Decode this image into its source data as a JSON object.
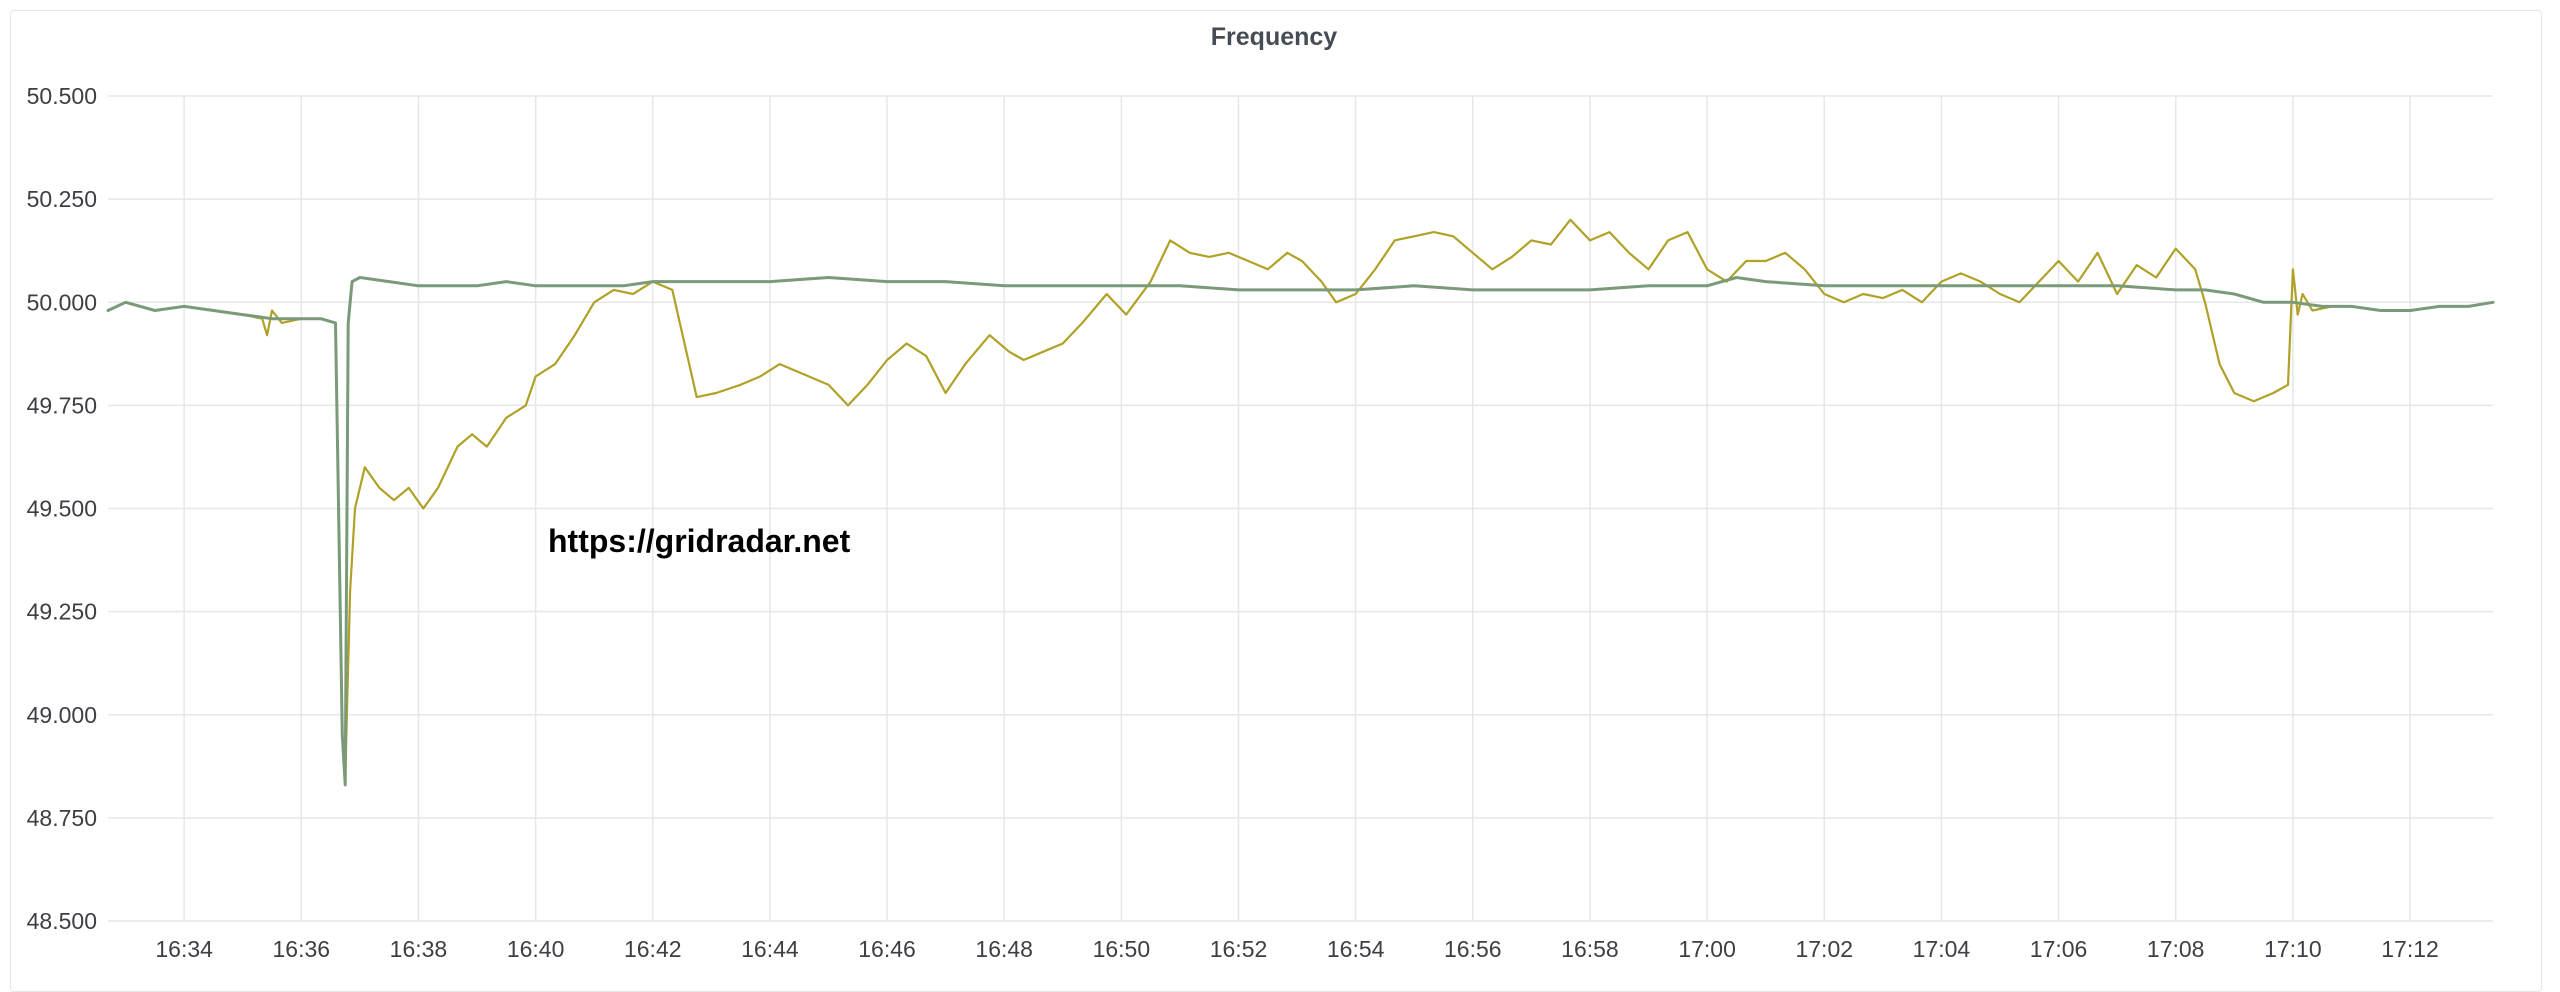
{
  "chart_data": {
    "type": "line",
    "title": "Frequency",
    "xlabel": "",
    "ylabel": "",
    "ylim": [
      48.5,
      50.5
    ],
    "yticks": [
      "50.500",
      "50.250",
      "50.000",
      "49.750",
      "49.500",
      "49.250",
      "49.000",
      "48.750",
      "48.500"
    ],
    "xticks": [
      "16:34",
      "16:36",
      "16:38",
      "16:40",
      "16:42",
      "16:44",
      "16:46",
      "16:48",
      "16:50",
      "16:52",
      "16:54",
      "16:56",
      "16:58",
      "17:00",
      "17:02",
      "17:04",
      "17:06",
      "17:08",
      "17:10",
      "17:12"
    ],
    "xrange": [
      "16:32:42",
      "17:13:25"
    ],
    "grid": true,
    "legend": "none",
    "watermark": "https://gridradar.net",
    "series": [
      {
        "color": "#b0a127",
        "points": [
          [
            "16:32:42",
            49.98
          ],
          [
            "16:33:00",
            50.0
          ],
          [
            "16:33:30",
            49.98
          ],
          [
            "16:34:00",
            49.99
          ],
          [
            "16:34:30",
            49.98
          ],
          [
            "16:35:00",
            49.97
          ],
          [
            "16:35:20",
            49.96
          ],
          [
            "16:35:25",
            49.92
          ],
          [
            "16:35:30",
            49.98
          ],
          [
            "16:35:40",
            49.95
          ],
          [
            "16:36:00",
            49.96
          ],
          [
            "16:36:20",
            49.96
          ],
          [
            "16:36:35",
            49.95
          ],
          [
            "16:36:42",
            48.95
          ],
          [
            "16:36:45",
            48.84
          ],
          [
            "16:36:50",
            49.3
          ],
          [
            "16:36:55",
            49.5
          ],
          [
            "16:37:05",
            49.6
          ],
          [
            "16:37:20",
            49.55
          ],
          [
            "16:37:35",
            49.52
          ],
          [
            "16:37:50",
            49.55
          ],
          [
            "16:38:05",
            49.5
          ],
          [
            "16:38:20",
            49.55
          ],
          [
            "16:38:40",
            49.65
          ],
          [
            "16:38:55",
            49.68
          ],
          [
            "16:39:10",
            49.65
          ],
          [
            "16:39:30",
            49.72
          ],
          [
            "16:39:50",
            49.75
          ],
          [
            "16:40:00",
            49.82
          ],
          [
            "16:40:20",
            49.85
          ],
          [
            "16:40:40",
            49.92
          ],
          [
            "16:41:00",
            50.0
          ],
          [
            "16:41:20",
            50.03
          ],
          [
            "16:41:40",
            50.02
          ],
          [
            "16:42:00",
            50.05
          ],
          [
            "16:42:20",
            50.03
          ],
          [
            "16:42:45",
            49.77
          ],
          [
            "16:43:05",
            49.78
          ],
          [
            "16:43:30",
            49.8
          ],
          [
            "16:43:50",
            49.82
          ],
          [
            "16:44:10",
            49.85
          ],
          [
            "16:44:40",
            49.82
          ],
          [
            "16:45:00",
            49.8
          ],
          [
            "16:45:20",
            49.75
          ],
          [
            "16:45:40",
            49.8
          ],
          [
            "16:46:00",
            49.86
          ],
          [
            "16:46:20",
            49.9
          ],
          [
            "16:46:40",
            49.87
          ],
          [
            "16:47:00",
            49.78
          ],
          [
            "16:47:20",
            49.85
          ],
          [
            "16:47:45",
            49.92
          ],
          [
            "16:48:05",
            49.88
          ],
          [
            "16:48:20",
            49.86
          ],
          [
            "16:48:40",
            49.88
          ],
          [
            "16:49:00",
            49.9
          ],
          [
            "16:49:20",
            49.95
          ],
          [
            "16:49:45",
            50.02
          ],
          [
            "16:50:05",
            49.97
          ],
          [
            "16:50:30",
            50.05
          ],
          [
            "16:50:50",
            50.15
          ],
          [
            "16:51:10",
            50.12
          ],
          [
            "16:51:30",
            50.11
          ],
          [
            "16:51:50",
            50.12
          ],
          [
            "16:52:10",
            50.1
          ],
          [
            "16:52:30",
            50.08
          ],
          [
            "16:52:50",
            50.12
          ],
          [
            "16:53:05",
            50.1
          ],
          [
            "16:53:25",
            50.05
          ],
          [
            "16:53:40",
            50.0
          ],
          [
            "16:54:00",
            50.02
          ],
          [
            "16:54:20",
            50.08
          ],
          [
            "16:54:40",
            50.15
          ],
          [
            "16:55:00",
            50.16
          ],
          [
            "16:55:20",
            50.17
          ],
          [
            "16:55:40",
            50.16
          ],
          [
            "16:56:00",
            50.12
          ],
          [
            "16:56:20",
            50.08
          ],
          [
            "16:56:40",
            50.11
          ],
          [
            "16:57:00",
            50.15
          ],
          [
            "16:57:20",
            50.14
          ],
          [
            "16:57:40",
            50.2
          ],
          [
            "16:58:00",
            50.15
          ],
          [
            "16:58:20",
            50.17
          ],
          [
            "16:58:40",
            50.12
          ],
          [
            "16:59:00",
            50.08
          ],
          [
            "16:59:20",
            50.15
          ],
          [
            "16:59:40",
            50.17
          ],
          [
            "17:00:00",
            50.08
          ],
          [
            "17:00:20",
            50.05
          ],
          [
            "17:00:40",
            50.1
          ],
          [
            "17:01:00",
            50.1
          ],
          [
            "17:01:20",
            50.12
          ],
          [
            "17:01:40",
            50.08
          ],
          [
            "17:02:00",
            50.02
          ],
          [
            "17:02:20",
            50.0
          ],
          [
            "17:02:40",
            50.02
          ],
          [
            "17:03:00",
            50.01
          ],
          [
            "17:03:20",
            50.03
          ],
          [
            "17:03:40",
            50.0
          ],
          [
            "17:04:00",
            50.05
          ],
          [
            "17:04:20",
            50.07
          ],
          [
            "17:04:40",
            50.05
          ],
          [
            "17:05:00",
            50.02
          ],
          [
            "17:05:20",
            50.0
          ],
          [
            "17:05:40",
            50.05
          ],
          [
            "17:06:00",
            50.1
          ],
          [
            "17:06:20",
            50.05
          ],
          [
            "17:06:40",
            50.12
          ],
          [
            "17:07:00",
            50.02
          ],
          [
            "17:07:20",
            50.09
          ],
          [
            "17:07:40",
            50.06
          ],
          [
            "17:08:00",
            50.13
          ],
          [
            "17:08:20",
            50.08
          ],
          [
            "17:08:30",
            50.0
          ],
          [
            "17:08:45",
            49.85
          ],
          [
            "17:09:00",
            49.78
          ],
          [
            "17:09:20",
            49.76
          ],
          [
            "17:09:40",
            49.78
          ],
          [
            "17:09:55",
            49.8
          ],
          [
            "17:10:00",
            50.08
          ],
          [
            "17:10:05",
            49.97
          ],
          [
            "17:10:10",
            50.02
          ],
          [
            "17:10:20",
            49.98
          ],
          [
            "17:10:40",
            49.99
          ],
          [
            "17:11:00",
            49.99
          ]
        ]
      },
      {
        "color": "#7a9a78",
        "points": [
          [
            "16:32:42",
            49.98
          ],
          [
            "16:33:00",
            50.0
          ],
          [
            "16:33:30",
            49.98
          ],
          [
            "16:34:00",
            49.99
          ],
          [
            "16:34:30",
            49.98
          ],
          [
            "16:35:00",
            49.97
          ],
          [
            "16:35:30",
            49.96
          ],
          [
            "16:36:00",
            49.96
          ],
          [
            "16:36:20",
            49.96
          ],
          [
            "16:36:35",
            49.95
          ],
          [
            "16:36:42",
            48.95
          ],
          [
            "16:36:45",
            48.83
          ],
          [
            "16:36:48",
            49.95
          ],
          [
            "16:36:52",
            50.05
          ],
          [
            "16:37:00",
            50.06
          ],
          [
            "16:37:30",
            50.05
          ],
          [
            "16:38:00",
            50.04
          ],
          [
            "16:38:30",
            50.04
          ],
          [
            "16:39:00",
            50.04
          ],
          [
            "16:39:30",
            50.05
          ],
          [
            "16:40:00",
            50.04
          ],
          [
            "16:40:30",
            50.04
          ],
          [
            "16:41:00",
            50.04
          ],
          [
            "16:41:30",
            50.04
          ],
          [
            "16:42:00",
            50.05
          ],
          [
            "16:43:00",
            50.05
          ],
          [
            "16:44:00",
            50.05
          ],
          [
            "16:45:00",
            50.06
          ],
          [
            "16:46:00",
            50.05
          ],
          [
            "16:47:00",
            50.05
          ],
          [
            "16:48:00",
            50.04
          ],
          [
            "16:49:00",
            50.04
          ],
          [
            "16:50:00",
            50.04
          ],
          [
            "16:51:00",
            50.04
          ],
          [
            "16:52:00",
            50.03
          ],
          [
            "16:53:00",
            50.03
          ],
          [
            "16:54:00",
            50.03
          ],
          [
            "16:55:00",
            50.04
          ],
          [
            "16:56:00",
            50.03
          ],
          [
            "16:57:00",
            50.03
          ],
          [
            "16:58:00",
            50.03
          ],
          [
            "16:59:00",
            50.04
          ],
          [
            "17:00:00",
            50.04
          ],
          [
            "17:00:30",
            50.06
          ],
          [
            "17:01:00",
            50.05
          ],
          [
            "17:02:00",
            50.04
          ],
          [
            "17:03:00",
            50.04
          ],
          [
            "17:04:00",
            50.04
          ],
          [
            "17:05:00",
            50.04
          ],
          [
            "17:06:00",
            50.04
          ],
          [
            "17:07:00",
            50.04
          ],
          [
            "17:08:00",
            50.03
          ],
          [
            "17:08:30",
            50.03
          ],
          [
            "17:09:00",
            50.02
          ],
          [
            "17:09:30",
            50.0
          ],
          [
            "17:10:00",
            50.0
          ],
          [
            "17:10:30",
            49.99
          ],
          [
            "17:11:00",
            49.99
          ],
          [
            "17:11:30",
            49.98
          ],
          [
            "17:12:00",
            49.98
          ],
          [
            "17:12:30",
            49.99
          ],
          [
            "17:13:00",
            49.99
          ],
          [
            "17:13:25",
            50.0
          ]
        ]
      }
    ]
  }
}
